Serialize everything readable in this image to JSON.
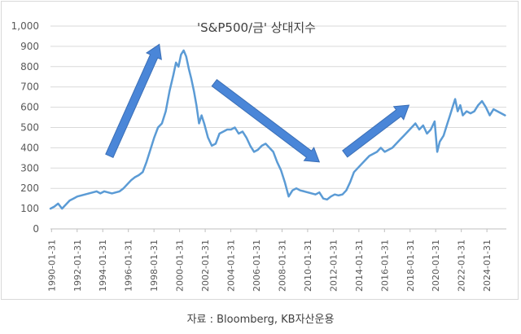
{
  "chart_data": {
    "type": "line",
    "title": "'S&P500/금' 상대지수",
    "xlabel": "",
    "ylabel": "",
    "ylim": [
      0,
      1000
    ],
    "y_ticks": [
      0,
      100,
      200,
      300,
      400,
      500,
      600,
      700,
      800,
      900,
      1000
    ],
    "y_tick_labels": [
      "0",
      "100",
      "200",
      "300",
      "400",
      "500",
      "600",
      "700",
      "800",
      "900",
      "1,000"
    ],
    "x_tick_labels": [
      "1990-01-31",
      "1992-01-31",
      "1994-01-31",
      "1996-01-31",
      "1998-01-31",
      "2000-01-31",
      "2002-01-31",
      "2004-01-31",
      "2006-01-31",
      "2008-01-31",
      "2010-01-31",
      "2012-01-31",
      "2014-01-31",
      "2016-01-31",
      "2018-01-31",
      "2020-01-31",
      "2022-01-31",
      "2024-01-31"
    ],
    "xlim": [
      1990.0,
      2025.6
    ],
    "grid": true,
    "legend": "none",
    "line_color": "#5b9bd5",
    "arrow_color": "#4a86d8",
    "series": [
      {
        "name": "'S&P500/금' 상대지수",
        "x": [
          1990.0,
          1990.3,
          1990.6,
          1990.9,
          1991.2,
          1991.5,
          1991.8,
          1992.1,
          1992.4,
          1992.7,
          1993.0,
          1993.3,
          1993.6,
          1993.9,
          1994.2,
          1994.5,
          1994.8,
          1995.1,
          1995.4,
          1995.7,
          1996.0,
          1996.3,
          1996.6,
          1996.9,
          1997.2,
          1997.5,
          1997.8,
          1998.1,
          1998.4,
          1998.7,
          1999.0,
          1999.3,
          1999.6,
          1999.8,
          2000.0,
          2000.2,
          2000.4,
          2000.6,
          2000.8,
          2001.0,
          2001.2,
          2001.4,
          2001.6,
          2001.8,
          2002.0,
          2002.3,
          2002.6,
          2002.9,
          2003.2,
          2003.5,
          2003.8,
          2004.1,
          2004.4,
          2004.7,
          2005.0,
          2005.3,
          2005.6,
          2005.9,
          2006.2,
          2006.5,
          2006.8,
          2007.1,
          2007.4,
          2007.7,
          2008.0,
          2008.3,
          2008.6,
          2008.9,
          2009.2,
          2009.5,
          2009.8,
          2010.1,
          2010.4,
          2010.7,
          2011.0,
          2011.3,
          2011.6,
          2011.9,
          2012.2,
          2012.5,
          2012.8,
          2013.1,
          2013.4,
          2013.7,
          2014.0,
          2014.3,
          2014.6,
          2014.9,
          2015.2,
          2015.5,
          2015.8,
          2016.1,
          2016.4,
          2016.7,
          2017.0,
          2017.3,
          2017.6,
          2017.9,
          2018.2,
          2018.5,
          2018.8,
          2019.1,
          2019.4,
          2019.7,
          2020.0,
          2020.2,
          2020.4,
          2020.7,
          2021.0,
          2021.2,
          2021.4,
          2021.6,
          2021.8,
          2022.0,
          2022.2,
          2022.5,
          2022.8,
          2023.1,
          2023.4,
          2023.7,
          2024.0,
          2024.3,
          2024.6,
          2024.9,
          2025.2,
          2025.5
        ],
        "values": [
          100,
          110,
          125,
          100,
          120,
          140,
          150,
          160,
          165,
          170,
          175,
          180,
          185,
          175,
          185,
          180,
          175,
          180,
          185,
          200,
          220,
          240,
          255,
          265,
          280,
          330,
          390,
          450,
          500,
          520,
          580,
          680,
          760,
          820,
          800,
          860,
          880,
          850,
          790,
          740,
          680,
          610,
          520,
          560,
          520,
          450,
          410,
          420,
          470,
          480,
          490,
          490,
          500,
          470,
          480,
          450,
          410,
          380,
          390,
          410,
          420,
          400,
          380,
          330,
          290,
          230,
          160,
          190,
          200,
          190,
          185,
          180,
          175,
          170,
          180,
          150,
          145,
          160,
          170,
          165,
          170,
          190,
          230,
          280,
          300,
          320,
          340,
          360,
          370,
          380,
          400,
          380,
          390,
          400,
          420,
          440,
          460,
          480,
          500,
          520,
          490,
          510,
          470,
          490,
          530,
          380,
          430,
          460,
          520,
          560,
          600,
          640,
          580,
          610,
          560,
          580,
          570,
          580,
          610,
          630,
          600,
          560,
          590,
          580,
          570,
          560
        ]
      }
    ],
    "annotations": [
      "up-arrow 1994-1998",
      "down-arrow 2002-2011",
      "up-arrow 2013-2018"
    ]
  },
  "footer": {
    "source": "자료 : Bloomberg, KB자산운용"
  }
}
